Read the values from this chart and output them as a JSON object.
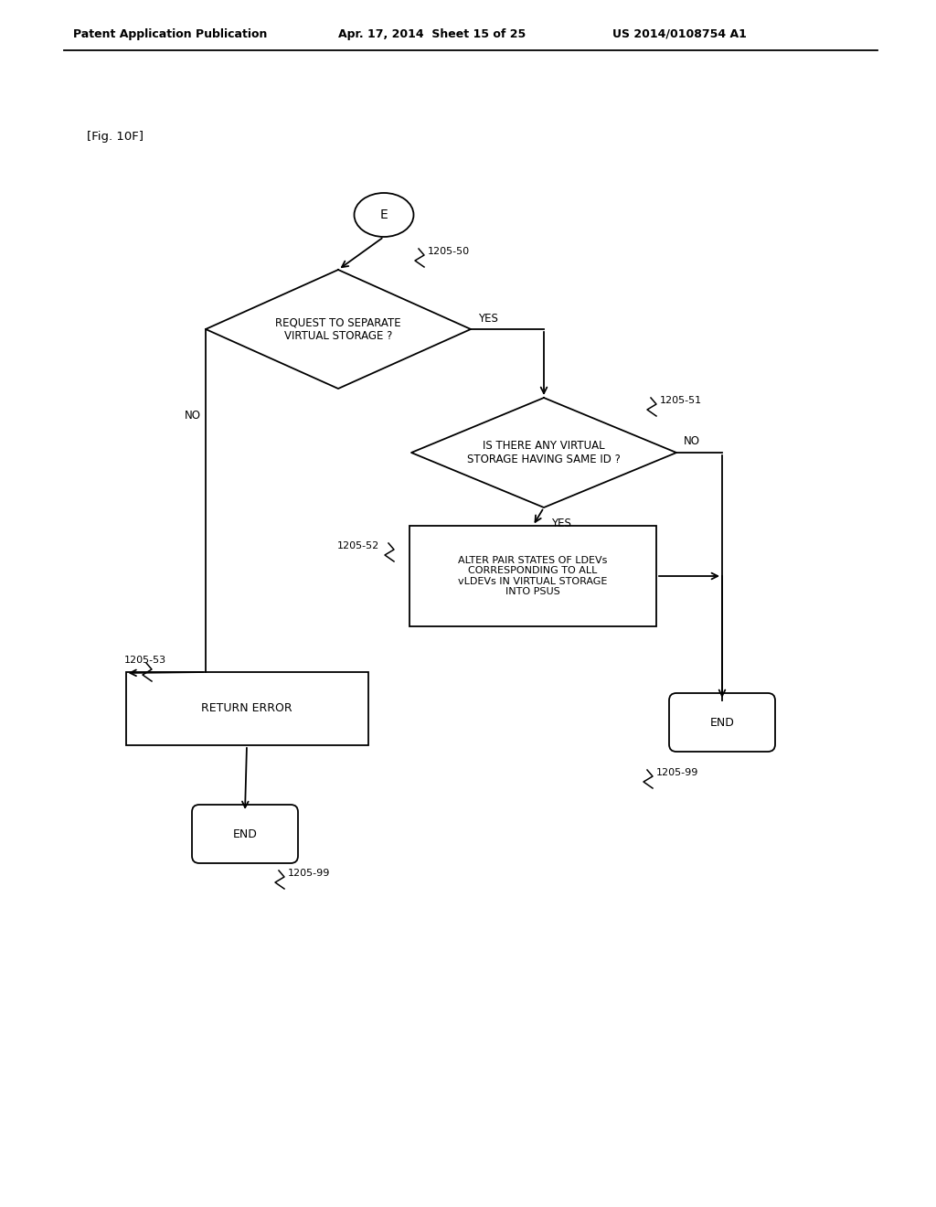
{
  "bg_color": "#ffffff",
  "header_left": "Patent Application Publication",
  "header_mid": "Apr. 17, 2014  Sheet 15 of 25",
  "header_right": "US 2014/0108754 A1",
  "fig_label": "[Fig. 10F]"
}
